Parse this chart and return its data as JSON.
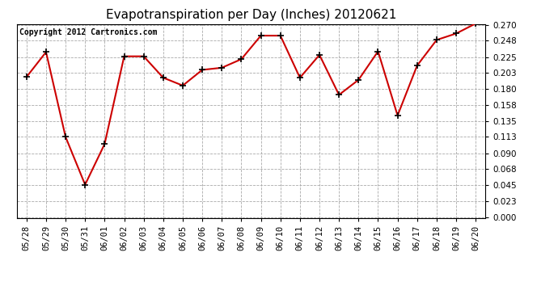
{
  "title": "Evapotranspiration per Day (Inches) 20120621",
  "copyright": "Copyright 2012 Cartronics.com",
  "dates": [
    "05/28",
    "05/29",
    "05/30",
    "05/31",
    "06/01",
    "06/02",
    "06/03",
    "06/04",
    "06/05",
    "06/06",
    "06/07",
    "06/08",
    "06/09",
    "06/10",
    "06/11",
    "06/12",
    "06/13",
    "06/14",
    "06/15",
    "06/16",
    "06/17",
    "06/18",
    "06/19",
    "06/20"
  ],
  "values": [
    0.197,
    0.232,
    0.113,
    0.046,
    0.103,
    0.226,
    0.226,
    0.196,
    0.185,
    0.207,
    0.21,
    0.222,
    0.255,
    0.255,
    0.196,
    0.228,
    0.172,
    0.193,
    0.233,
    0.143,
    0.213,
    0.249,
    0.258,
    0.272
  ],
  "line_color": "#cc0000",
  "marker": "+",
  "marker_size": 6,
  "marker_color": "#000000",
  "ylim": [
    0.0,
    0.27
  ],
  "yticks": [
    0.0,
    0.023,
    0.045,
    0.068,
    0.09,
    0.113,
    0.135,
    0.158,
    0.18,
    0.203,
    0.225,
    0.248,
    0.27
  ],
  "figure_bg": "#ffffff",
  "plot_bg_color": "#ffffff",
  "grid_color": "#aaaaaa",
  "title_fontsize": 11,
  "copyright_fontsize": 7,
  "tick_fontsize": 7.5,
  "figsize": [
    6.9,
    3.75
  ],
  "dpi": 100
}
